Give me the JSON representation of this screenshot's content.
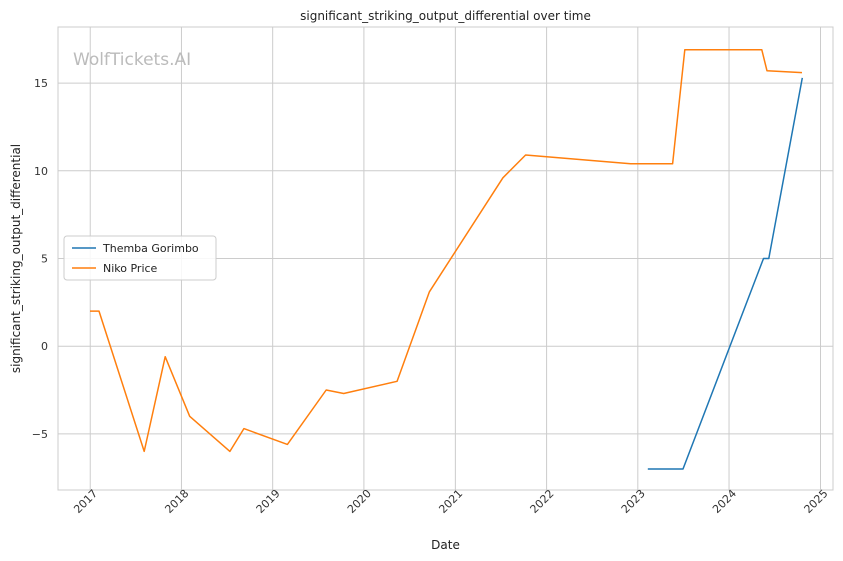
{
  "chart_data": {
    "type": "line",
    "title": "significant_striking_output_differential over time",
    "xlabel": "Date",
    "ylabel": "significant_striking_output_differential",
    "watermark": "WolfTickets.AI",
    "x_ticks": [
      "2017",
      "2018",
      "2019",
      "2020",
      "2021",
      "2022",
      "2023",
      "2024",
      "2025"
    ],
    "y_ticks": [
      -5,
      0,
      5,
      10,
      15
    ],
    "xlim": [
      "2016-08-25",
      "2025-02-20"
    ],
    "ylim": [
      -8.2,
      18.2
    ],
    "grid": true,
    "legend_position": "center-left",
    "series": [
      {
        "name": "Themba Gorimbo",
        "color": "#1f77b4",
        "points": [
          [
            "2023-02-10",
            -7.0
          ],
          [
            "2023-07-01",
            -7.0
          ],
          [
            "2024-05-18",
            5.0
          ],
          [
            "2024-06-08",
            5.0
          ],
          [
            "2024-10-20",
            15.3
          ]
        ]
      },
      {
        "name": "Niko Price",
        "color": "#ff7f0e",
        "points": [
          [
            "2016-12-31",
            2.0
          ],
          [
            "2017-02-05",
            2.0
          ],
          [
            "2017-08-05",
            -6.0
          ],
          [
            "2017-10-28",
            -0.6
          ],
          [
            "2018-02-03",
            -4.0
          ],
          [
            "2018-07-14",
            -6.0
          ],
          [
            "2018-09-08",
            -4.7
          ],
          [
            "2019-03-01",
            -5.6
          ],
          [
            "2019-08-03",
            -2.5
          ],
          [
            "2019-10-12",
            -2.7
          ],
          [
            "2020-05-13",
            -2.0
          ],
          [
            "2020-09-19",
            3.1
          ],
          [
            "2021-07-10",
            9.6
          ],
          [
            "2021-10-09",
            10.9
          ],
          [
            "2022-12-03",
            10.4
          ],
          [
            "2023-05-20",
            10.4
          ],
          [
            "2023-07-08",
            16.9
          ],
          [
            "2024-05-11",
            16.9
          ],
          [
            "2024-06-01",
            15.7
          ],
          [
            "2024-10-19",
            15.6
          ]
        ]
      }
    ]
  }
}
